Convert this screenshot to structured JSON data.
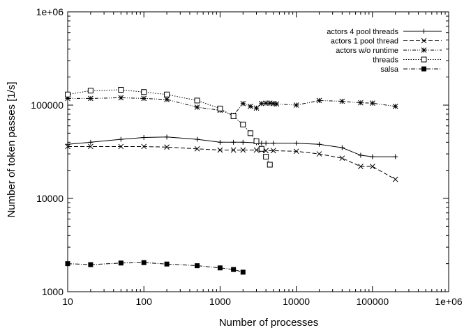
{
  "chart_data": {
    "type": "line",
    "title": "",
    "xlabel": "Number of processes",
    "ylabel": "Number of token passes [1/s]",
    "xscale": "log",
    "yscale": "log",
    "xlim": [
      10,
      1000000
    ],
    "ylim": [
      1000,
      1000000
    ],
    "x_ticks": [
      10,
      100,
      1000,
      10000,
      100000,
      1000000
    ],
    "x_tick_labels": [
      "10",
      "100",
      "1000",
      "10000",
      "100000",
      "1e+06"
    ],
    "y_ticks": [
      1000,
      10000,
      100000,
      1000000
    ],
    "y_tick_labels": [
      "1000",
      "10000",
      "100000",
      "1e+06"
    ],
    "grid": false,
    "legend_position": "top-right",
    "series": [
      {
        "name": "actors 4 pool threads",
        "marker": "plus",
        "line": "solid",
        "x": [
          10,
          20,
          50,
          100,
          200,
          500,
          1000,
          1500,
          2000,
          3000,
          3500,
          4000,
          5000,
          10000,
          20000,
          40000,
          70000,
          100000,
          200000
        ],
        "y": [
          38000,
          40000,
          43000,
          45000,
          45500,
          43000,
          40000,
          40000,
          40000,
          39500,
          39000,
          39000,
          39000,
          39000,
          38000,
          35000,
          29000,
          28000,
          28000
        ]
      },
      {
        "name": "actors 1 pool thread",
        "marker": "cross",
        "line": "dashed",
        "x": [
          10,
          20,
          50,
          100,
          200,
          500,
          1000,
          1500,
          2000,
          3000,
          3500,
          4000,
          5000,
          10000,
          20000,
          40000,
          70000,
          100000,
          200000
        ],
        "y": [
          36000,
          36000,
          36000,
          36000,
          35500,
          34000,
          33000,
          33000,
          33000,
          33000,
          33000,
          32500,
          32500,
          32000,
          30000,
          27000,
          22000,
          22000,
          16000
        ]
      },
      {
        "name": "actors w/o runtime",
        "marker": "asterisk",
        "line": "dash-dot-dot",
        "x": [
          10,
          20,
          50,
          100,
          200,
          500,
          1000,
          1500,
          2000,
          2500,
          3000,
          3500,
          4000,
          4500,
          5000,
          5500,
          10000,
          20000,
          40000,
          70000,
          100000,
          200000
        ],
        "y": [
          118000,
          118000,
          120000,
          118000,
          115000,
          95000,
          88000,
          78000,
          104000,
          97000,
          93000,
          104000,
          105000,
          105000,
          104000,
          103000,
          100000,
          112000,
          110000,
          106000,
          105000,
          97000
        ]
      },
      {
        "name": "threads",
        "marker": "open-square",
        "line": "dotted",
        "x": [
          10,
          20,
          50,
          100,
          200,
          500,
          1000,
          1500,
          2000,
          2500,
          3000,
          3500,
          4000,
          4500
        ],
        "y": [
          130000,
          143000,
          146000,
          138000,
          130000,
          112000,
          92000,
          76000,
          62000,
          50000,
          41000,
          34000,
          28000,
          23000
        ]
      },
      {
        "name": "salsa",
        "marker": "filled-square",
        "line": "dash-dot",
        "x": [
          10,
          20,
          50,
          100,
          200,
          500,
          1000,
          1500,
          2000
        ],
        "y": [
          2000,
          1950,
          2030,
          2050,
          1980,
          1900,
          1800,
          1730,
          1620
        ]
      }
    ]
  }
}
